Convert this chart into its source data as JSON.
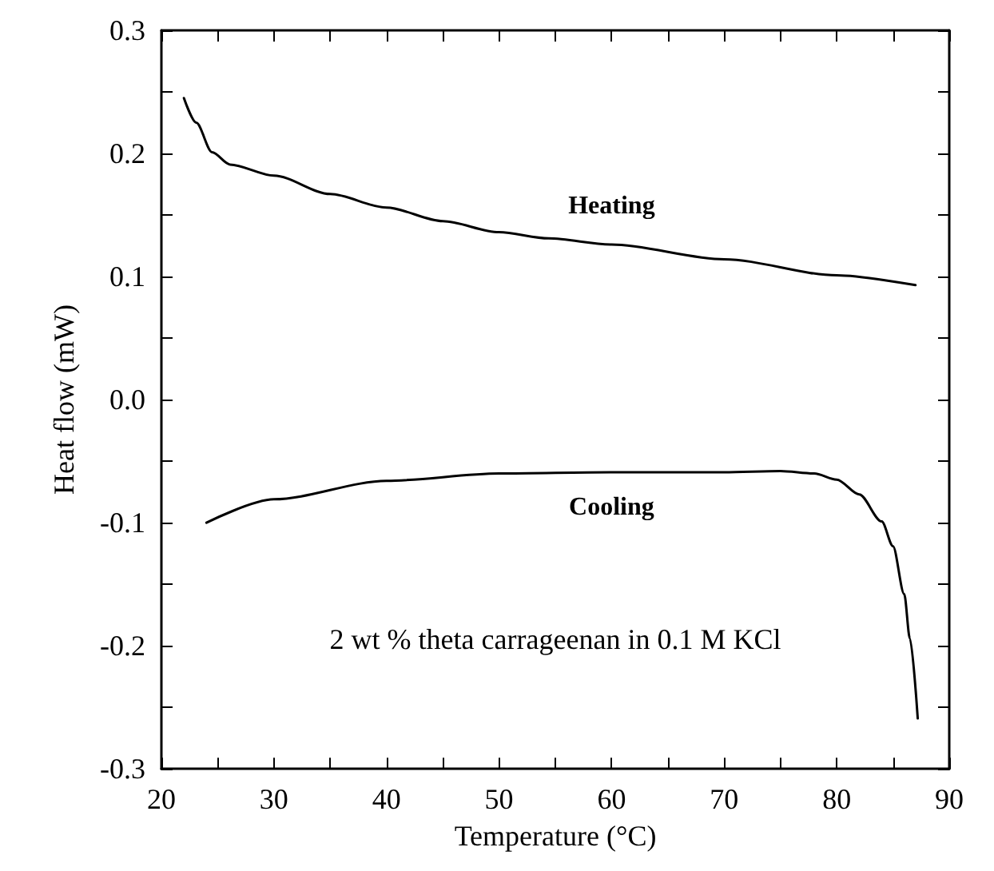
{
  "chart_data": {
    "type": "line",
    "xlabel": "Temperature (°C)",
    "ylabel": "Heat flow (mW)",
    "xlim": [
      20,
      90
    ],
    "xticks": [
      20,
      30,
      40,
      50,
      60,
      70,
      80,
      90
    ],
    "ylim": [
      -0.3,
      0.3
    ],
    "yticks": [
      -0.3,
      -0.2,
      -0.1,
      {
        "value": 0,
        "label": "0.0"
      },
      0.1,
      0.2,
      0.3
    ],
    "grid": false,
    "marker": "none",
    "line_style": "solid",
    "annotations": [
      "2 wt % theta carrageenan in 0.1 M KCl"
    ],
    "series": [
      {
        "name": "Heating",
        "color": "#000000",
        "x": [
          22,
          23.1,
          24.5,
          26.1,
          30,
          35,
          40,
          45,
          50,
          54.4,
          60,
          70,
          80,
          87
        ],
        "values": [
          0.245,
          0.225,
          0.201,
          0.191,
          0.182,
          0.167,
          0.156,
          0.145,
          0.136,
          0.131,
          0.126,
          0.114,
          0.101,
          0.093
        ]
      },
      {
        "name": "Cooling",
        "color": "#000000",
        "x": [
          24,
          30,
          40,
          50,
          60,
          70,
          75,
          78,
          80,
          82,
          84,
          85,
          86,
          86.5,
          87.2
        ],
        "values": [
          -0.1,
          -0.081,
          -0.066,
          -0.06,
          -0.059,
          -0.059,
          -0.058,
          -0.06,
          -0.065,
          -0.077,
          -0.099,
          -0.119,
          -0.158,
          -0.194,
          -0.259
        ]
      }
    ]
  }
}
